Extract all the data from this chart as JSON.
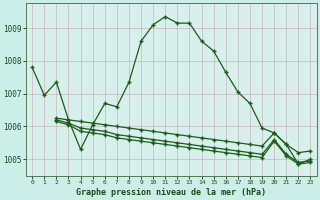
{
  "title": "Graphe pression niveau de la mer (hPa)",
  "bg_color": "#cceee8",
  "plot_bg_color": "#d8f0ec",
  "grid_color": "#c8b0b8",
  "line_color": "#1a5c1a",
  "xlim": [
    -0.5,
    23.5
  ],
  "ylim": [
    1004.5,
    1009.75
  ],
  "yticks": [
    1005,
    1006,
    1007,
    1008,
    1009
  ],
  "xticks": [
    0,
    1,
    2,
    3,
    4,
    5,
    6,
    7,
    8,
    9,
    10,
    11,
    12,
    13,
    14,
    15,
    16,
    17,
    18,
    19,
    20,
    21,
    22,
    23
  ],
  "series1_x": [
    0,
    1,
    2,
    3,
    4,
    5,
    6,
    7,
    8,
    9,
    10,
    11,
    12,
    13,
    14,
    15,
    16,
    17,
    18,
    19,
    20,
    21,
    22,
    23
  ],
  "series1_y": [
    1007.8,
    1006.95,
    1007.35,
    1006.2,
    1005.3,
    1006.05,
    1006.7,
    1006.6,
    1007.35,
    1008.6,
    1009.1,
    1009.35,
    1009.15,
    1009.15,
    1008.6,
    1008.3,
    1007.65,
    1007.05,
    1006.7,
    1005.95,
    1005.8,
    1005.45,
    1004.85,
    1005.0
  ],
  "series2_x": [
    2,
    3,
    4,
    5,
    6,
    7,
    8,
    9,
    10,
    11,
    12,
    13,
    14,
    15,
    16,
    17,
    18,
    19,
    20,
    21,
    22,
    23
  ],
  "series2_y": [
    1006.25,
    1006.2,
    1006.15,
    1006.1,
    1006.05,
    1006.0,
    1005.95,
    1005.9,
    1005.85,
    1005.8,
    1005.75,
    1005.7,
    1005.65,
    1005.6,
    1005.55,
    1005.5,
    1005.45,
    1005.4,
    1005.8,
    1005.45,
    1005.2,
    1005.25
  ],
  "series3_x": [
    2,
    3,
    4,
    5,
    6,
    7,
    8,
    9,
    10,
    11,
    12,
    13,
    14,
    15,
    16,
    17,
    18,
    19,
    20,
    21,
    22,
    23
  ],
  "series3_y": [
    1006.2,
    1006.1,
    1005.95,
    1005.9,
    1005.85,
    1005.75,
    1005.7,
    1005.65,
    1005.6,
    1005.55,
    1005.5,
    1005.45,
    1005.4,
    1005.35,
    1005.3,
    1005.25,
    1005.2,
    1005.15,
    1005.6,
    1005.15,
    1004.9,
    1004.95
  ],
  "series4_x": [
    2,
    3,
    4,
    5,
    6,
    7,
    8,
    9,
    10,
    11,
    12,
    13,
    14,
    15,
    16,
    17,
    18,
    19,
    20,
    21,
    22,
    23
  ],
  "series4_y": [
    1006.15,
    1006.05,
    1005.85,
    1005.8,
    1005.75,
    1005.65,
    1005.6,
    1005.55,
    1005.5,
    1005.45,
    1005.4,
    1005.35,
    1005.3,
    1005.25,
    1005.2,
    1005.15,
    1005.1,
    1005.05,
    1005.55,
    1005.1,
    1004.85,
    1004.9
  ]
}
